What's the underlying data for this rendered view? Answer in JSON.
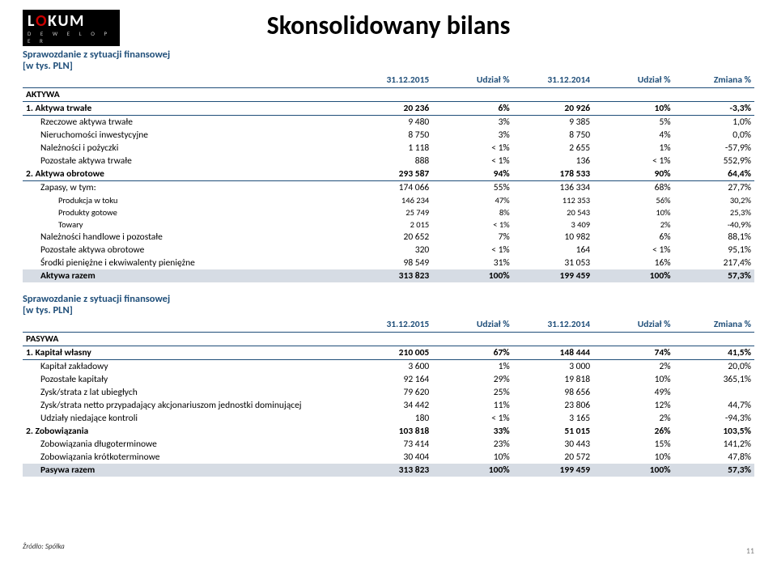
{
  "logo": {
    "letters": [
      "L",
      "O",
      "K",
      "U",
      "M"
    ],
    "sub": "D E W E L O P E R"
  },
  "title": "Skonsolidowany bilans",
  "t1": {
    "label1": "Sprawozdanie z sytuacji finansowej",
    "label2": "[w tys. PLN]",
    "headers": [
      "31.12.2015",
      "Udział %",
      "31.12.2014",
      "Udział %",
      "Zmiana %"
    ],
    "section": "AKTYWA",
    "rows": [
      {
        "lvl": "cat",
        "name": "1.    Aktywa trwałe",
        "v": [
          "20 236",
          "6%",
          "20 926",
          "10%",
          "-3,3%"
        ]
      },
      {
        "lvl": "sub1",
        "name": "Rzeczowe aktywa trwałe",
        "v": [
          "9 480",
          "3%",
          "9 385",
          "5%",
          "1,0%"
        ]
      },
      {
        "lvl": "sub1",
        "name": "Nieruchomości inwestycyjne",
        "v": [
          "8 750",
          "3%",
          "8 750",
          "4%",
          "0,0%"
        ]
      },
      {
        "lvl": "sub1",
        "name": "Należności i pożyczki",
        "v": [
          "1 118",
          "< 1%",
          "2 655",
          "1%",
          "-57,9%"
        ]
      },
      {
        "lvl": "sub1",
        "name": "Pozostałe aktywa trwałe",
        "v": [
          "888",
          "< 1%",
          "136",
          "< 1%",
          "552,9%"
        ]
      },
      {
        "lvl": "cat",
        "name": "2.    Aktywa obrotowe",
        "v": [
          "293 587",
          "94%",
          "178 533",
          "90%",
          "64,4%"
        ]
      },
      {
        "lvl": "sub1",
        "name": "Zapasy, w tym:",
        "v": [
          "174 066",
          "55%",
          "136 334",
          "68%",
          "27,7%"
        ]
      },
      {
        "lvl": "sub2",
        "name": "Produkcja w toku",
        "v": [
          "146 234",
          "47%",
          "112 353",
          "56%",
          "30,2%"
        ]
      },
      {
        "lvl": "sub2",
        "name": "Produkty gotowe",
        "v": [
          "25 749",
          "8%",
          "20 543",
          "10%",
          "25,3%"
        ]
      },
      {
        "lvl": "sub2",
        "name": "Towary",
        "v": [
          "2 015",
          "< 1%",
          "3 409",
          "2%",
          "-40,9%"
        ]
      },
      {
        "lvl": "sub1",
        "name": "Należności handlowe i pozostałe",
        "v": [
          "20 652",
          "7%",
          "10 982",
          "6%",
          "88,1%"
        ]
      },
      {
        "lvl": "sub1",
        "name": "Pozostałe aktywa obrotowe",
        "v": [
          "320",
          "< 1%",
          "164",
          "< 1%",
          "95,1%"
        ]
      },
      {
        "lvl": "sub1",
        "name": "Środki pieniężne i ekwiwalenty pieniężne",
        "v": [
          "98 549",
          "31%",
          "31 053",
          "16%",
          "217,4%"
        ]
      }
    ],
    "total": {
      "name": "Aktywa razem",
      "v": [
        "313 823",
        "100%",
        "199 459",
        "100%",
        "57,3%"
      ]
    }
  },
  "t2": {
    "label1": "Sprawozdanie z sytuacji finansowej",
    "label2": "[w tys. PLN]",
    "headers": [
      "31.12.2015",
      "Udział %",
      "31.12.2014",
      "Udział %",
      "Zmiana %"
    ],
    "section": "PASYWA",
    "rows": [
      {
        "lvl": "cat",
        "name": "1.    Kapitał własny",
        "v": [
          "210 005",
          "67%",
          "148 444",
          "74%",
          "41,5%"
        ]
      },
      {
        "lvl": "sub1",
        "name": "Kapitał zakładowy",
        "v": [
          "3 600",
          "1%",
          "3 000",
          "2%",
          "20,0%"
        ]
      },
      {
        "lvl": "sub1",
        "name": "Pozostałe kapitały",
        "v": [
          "92 164",
          "29%",
          "19 818",
          "10%",
          "365,1%"
        ]
      },
      {
        "lvl": "sub1",
        "name": "Zysk/strata z lat ubiegłych",
        "v": [
          "79 620",
          "25%",
          "98 656",
          "49%",
          ""
        ]
      },
      {
        "lvl": "sub1",
        "name": "Zysk/strata netto przypadający akcjonariuszom jednostki dominującej",
        "v": [
          "34 442",
          "11%",
          "23 806",
          "12%",
          "44,7%"
        ]
      },
      {
        "lvl": "sub1",
        "name": "Udziały niedające kontroli",
        "v": [
          "180",
          "< 1%",
          "3 165",
          "2%",
          "-94,3%"
        ]
      },
      {
        "lvl": "cat-nb",
        "name": "2.    Zobowiązania",
        "v": [
          "103 818",
          "33%",
          "51 015",
          "26%",
          "103,5%"
        ]
      },
      {
        "lvl": "sub1",
        "name": "Zobowiązania  długoterminowe",
        "v": [
          "73 414",
          "23%",
          "30 443",
          "15%",
          "141,2%"
        ]
      },
      {
        "lvl": "sub1",
        "name": "Zobowiązania  krótkoterminowe",
        "v": [
          "30 404",
          "10%",
          "20 572",
          "10%",
          "47,8%"
        ]
      }
    ],
    "total": {
      "name": "Pasywa razem",
      "v": [
        "313 823",
        "100%",
        "199 459",
        "100%",
        "57,3%"
      ]
    }
  },
  "source": "Źródło: Spółka",
  "page": "11",
  "colors": {
    "accent": "#1f4e79",
    "totalbg": "#d6dce4"
  }
}
